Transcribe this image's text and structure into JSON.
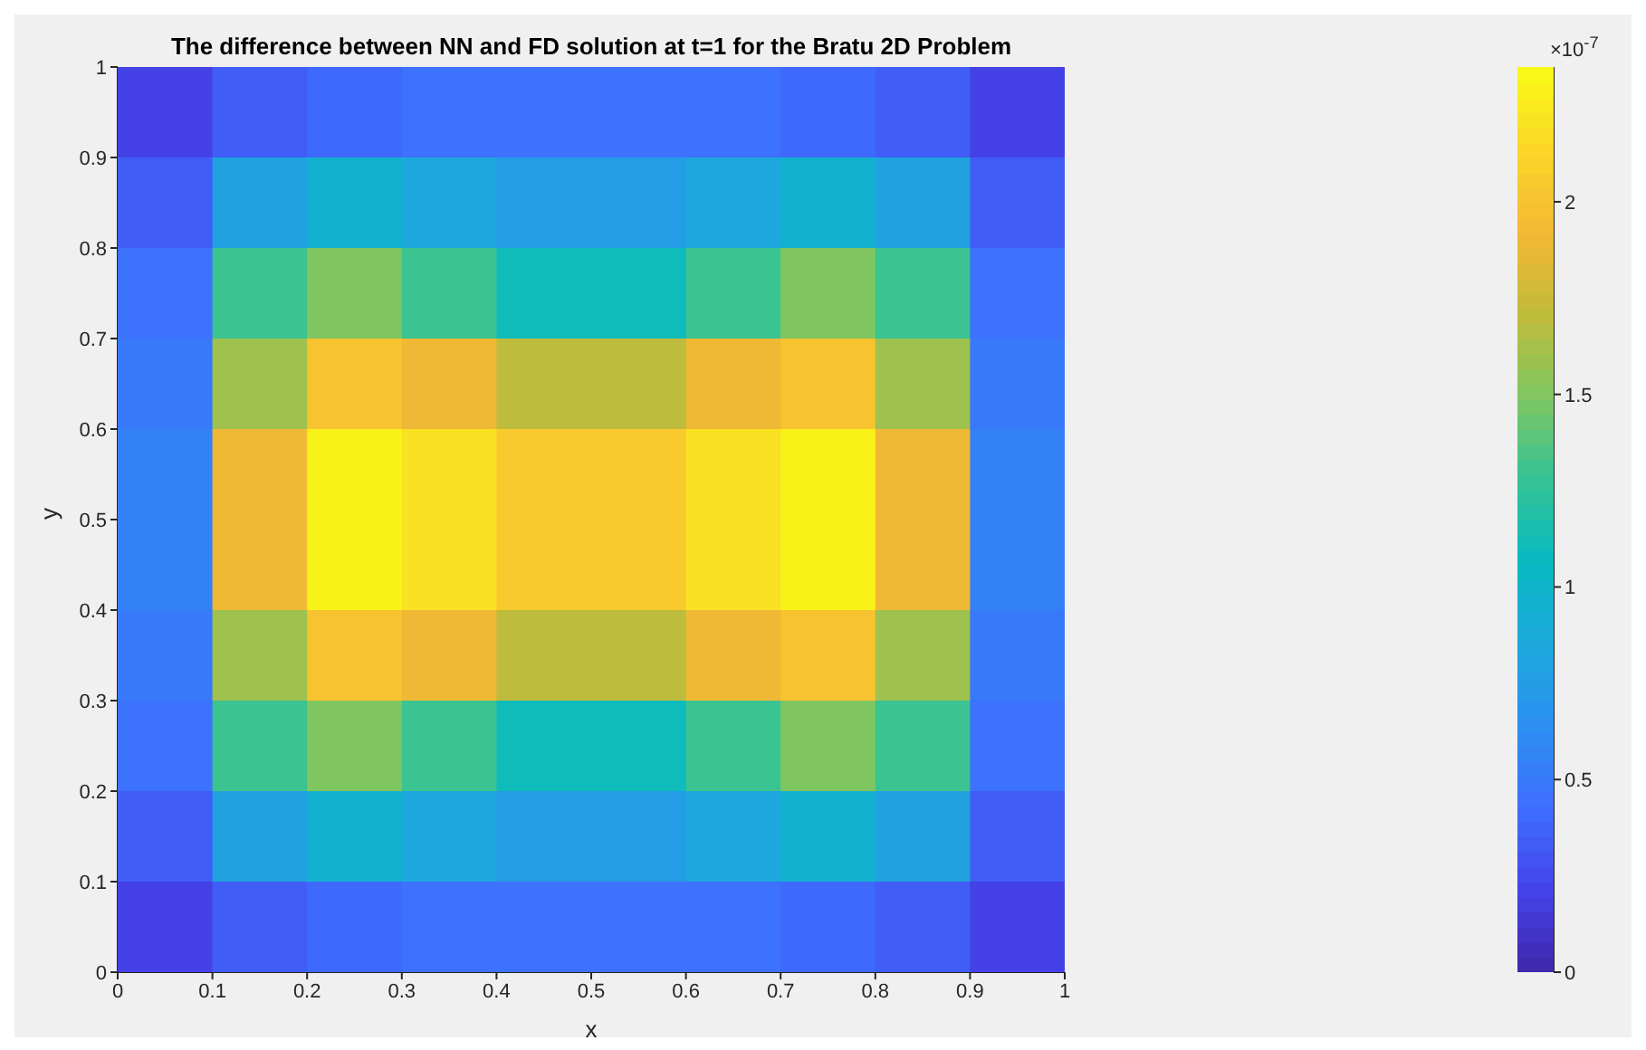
{
  "chart_data": {
    "type": "heatmap",
    "title": "The difference between NN and FD solution at t=1 for the Bratu 2D Problem",
    "xlabel": "x",
    "ylabel": "y",
    "xlim": [
      0,
      1
    ],
    "ylim": [
      0,
      1
    ],
    "xticks": [
      0,
      0.1,
      0.2,
      0.3,
      0.4,
      0.5,
      0.6,
      0.7,
      0.8,
      0.9,
      1
    ],
    "yticks": [
      0,
      0.1,
      0.2,
      0.3,
      0.4,
      0.5,
      0.6,
      0.7,
      0.8,
      0.9,
      1
    ],
    "cells": [
      [
        0.2,
        0.35,
        0.4,
        0.45,
        0.45,
        0.45,
        0.45,
        0.4,
        0.35,
        0.2
      ],
      [
        0.35,
        0.8,
        0.95,
        0.85,
        0.75,
        0.75,
        0.85,
        0.95,
        0.8,
        0.35
      ],
      [
        0.45,
        1.3,
        1.5,
        1.3,
        1.1,
        1.1,
        1.3,
        1.5,
        1.3,
        0.45
      ],
      [
        0.5,
        1.6,
        2.0,
        1.9,
        1.7,
        1.7,
        1.9,
        2.0,
        1.6,
        0.5
      ],
      [
        0.55,
        1.9,
        2.3,
        2.2,
        2.05,
        2.05,
        2.2,
        2.3,
        1.9,
        0.55
      ],
      [
        0.55,
        1.9,
        2.3,
        2.2,
        2.05,
        2.05,
        2.2,
        2.3,
        1.9,
        0.55
      ],
      [
        0.5,
        1.6,
        2.0,
        1.9,
        1.7,
        1.7,
        1.9,
        2.0,
        1.6,
        0.5
      ],
      [
        0.45,
        1.3,
        1.5,
        1.3,
        1.1,
        1.1,
        1.3,
        1.5,
        1.3,
        0.45
      ],
      [
        0.35,
        0.8,
        0.95,
        0.85,
        0.75,
        0.75,
        0.85,
        0.95,
        0.8,
        0.35
      ],
      [
        0.2,
        0.35,
        0.4,
        0.45,
        0.45,
        0.45,
        0.45,
        0.4,
        0.35,
        0.2
      ]
    ],
    "clim": [
      0,
      2.35
    ],
    "cticks": [
      0,
      0.5,
      1,
      1.5,
      2
    ],
    "annotations": [
      "×10$^{-7}$"
    ]
  }
}
